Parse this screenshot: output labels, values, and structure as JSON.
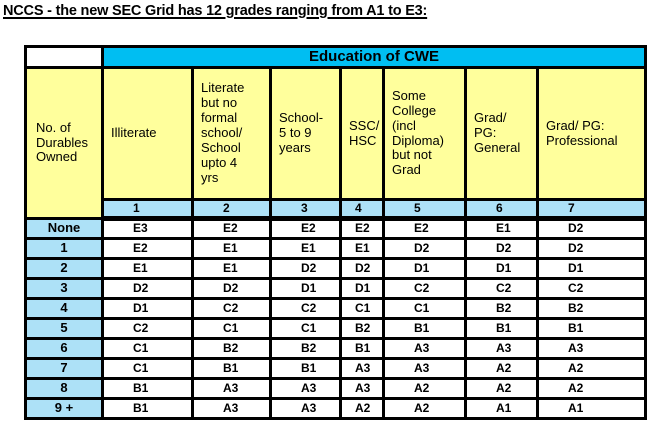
{
  "title": "NCCS - the new SEC Grid has 12 grades ranging from A1 to E3:",
  "table": {
    "band_header": "Education of CWE",
    "row_axis_header": "No. of\nDurables\nOwned",
    "col_headers": [
      "Illiterate",
      "Literate\nbut no\nformal\nschool/\nSchool\nupto 4\nyrs",
      "School-\n5 to 9\nyears",
      "SSC/\nHSC",
      "Some\nCollege\n(incl\nDiploma)\nbut not\nGrad",
      "Grad/\nPG:\nGeneral",
      "Grad/ PG:\nProfessional"
    ],
    "col_numbers": [
      "1",
      "2",
      "3",
      "4",
      "5",
      "6",
      "7"
    ],
    "rows": [
      {
        "label": "None",
        "values": [
          "E3",
          "E2",
          "E2",
          "E2",
          "E2",
          "E1",
          "D2"
        ]
      },
      {
        "label": "1",
        "values": [
          "E2",
          "E1",
          "E1",
          "E1",
          "D2",
          "D2",
          "D2"
        ]
      },
      {
        "label": "2",
        "values": [
          "E1",
          "E1",
          "D2",
          "D2",
          "D1",
          "D1",
          "D1"
        ]
      },
      {
        "label": "3",
        "values": [
          "D2",
          "D2",
          "D1",
          "D1",
          "C2",
          "C2",
          "C2"
        ]
      },
      {
        "label": "4",
        "values": [
          "D1",
          "C2",
          "C2",
          "C1",
          "C1",
          "B2",
          "B2"
        ]
      },
      {
        "label": "5",
        "values": [
          "C2",
          "C1",
          "C1",
          "B2",
          "B1",
          "B1",
          "B1"
        ]
      },
      {
        "label": "6",
        "values": [
          "C1",
          "B2",
          "B2",
          "B1",
          "A3",
          "A3",
          "A3"
        ]
      },
      {
        "label": "7",
        "values": [
          "C1",
          "B1",
          "B1",
          "A3",
          "A3",
          "A2",
          "A2"
        ]
      },
      {
        "label": "8",
        "values": [
          "B1",
          "A3",
          "A3",
          "A3",
          "A2",
          "A2",
          "A2"
        ]
      },
      {
        "label": "9 +",
        "values": [
          "B1",
          "A3",
          "A3",
          "A2",
          "A2",
          "A1",
          "A1"
        ]
      }
    ],
    "colors": {
      "band": "#00BEF2",
      "header": "#FFFF9C",
      "label": "#ADE1F7",
      "body": "#FFFFFF",
      "border": "#000000"
    }
  }
}
